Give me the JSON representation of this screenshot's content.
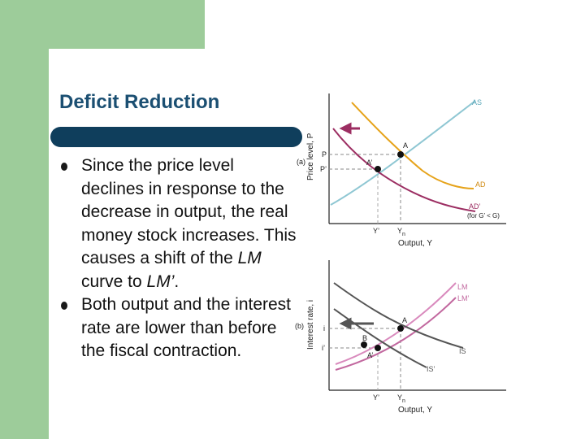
{
  "slide": {
    "title": "Deficit Reduction",
    "bullets": [
      {
        "segments": [
          "Since the price level declines in response to the decrease in output, the real money stock increases. This causes a shift of the ",
          "LM",
          " curve to ",
          "LM’",
          "."
        ]
      },
      {
        "segments": [
          "Both output and the interest rate are lower than before the fiscal contraction."
        ]
      }
    ]
  },
  "figure": {
    "panel_a": {
      "tag": "(a)",
      "y_axis_label": "Price level, P",
      "x_axis_label": "Output, Y",
      "curves": {
        "AS": "AS",
        "AD": "AD",
        "AD_prime": "AD’",
        "AD_prime_note": "(for G’ < G)"
      },
      "points": {
        "A": "A",
        "A_prime": "A’"
      },
      "y_ticks": {
        "P": "P",
        "P_prime": "P’"
      },
      "x_ticks": {
        "Y_prime": "Y’",
        "Yn": "Y",
        "Yn_sub": "n"
      }
    },
    "panel_b": {
      "tag": "(b)",
      "y_axis_label": "Interest rate, i",
      "x_axis_label": "Output, Y",
      "curves": {
        "LM": "LM",
        "LM_prime": "LM’",
        "IS": "IS",
        "IS_prime": "IS’"
      },
      "points": {
        "A": "A",
        "A_prime": "A’",
        "B": "B"
      },
      "y_ticks": {
        "i": "i",
        "i_prime": "i’"
      },
      "x_ticks": {
        "Y_prime": "Y’",
        "Yn": "Y",
        "Yn_sub": "n"
      }
    },
    "colors": {
      "AS": "#8fc7d3",
      "AD": "#e6a31a",
      "AD_prime": "#9c2e62",
      "LM": "#d98abd",
      "LM_prime": "#c2689f",
      "IS": "#555555",
      "arrow_a": "#9c2e62",
      "arrow_b": "#555555",
      "dashed": "#888888"
    }
  }
}
